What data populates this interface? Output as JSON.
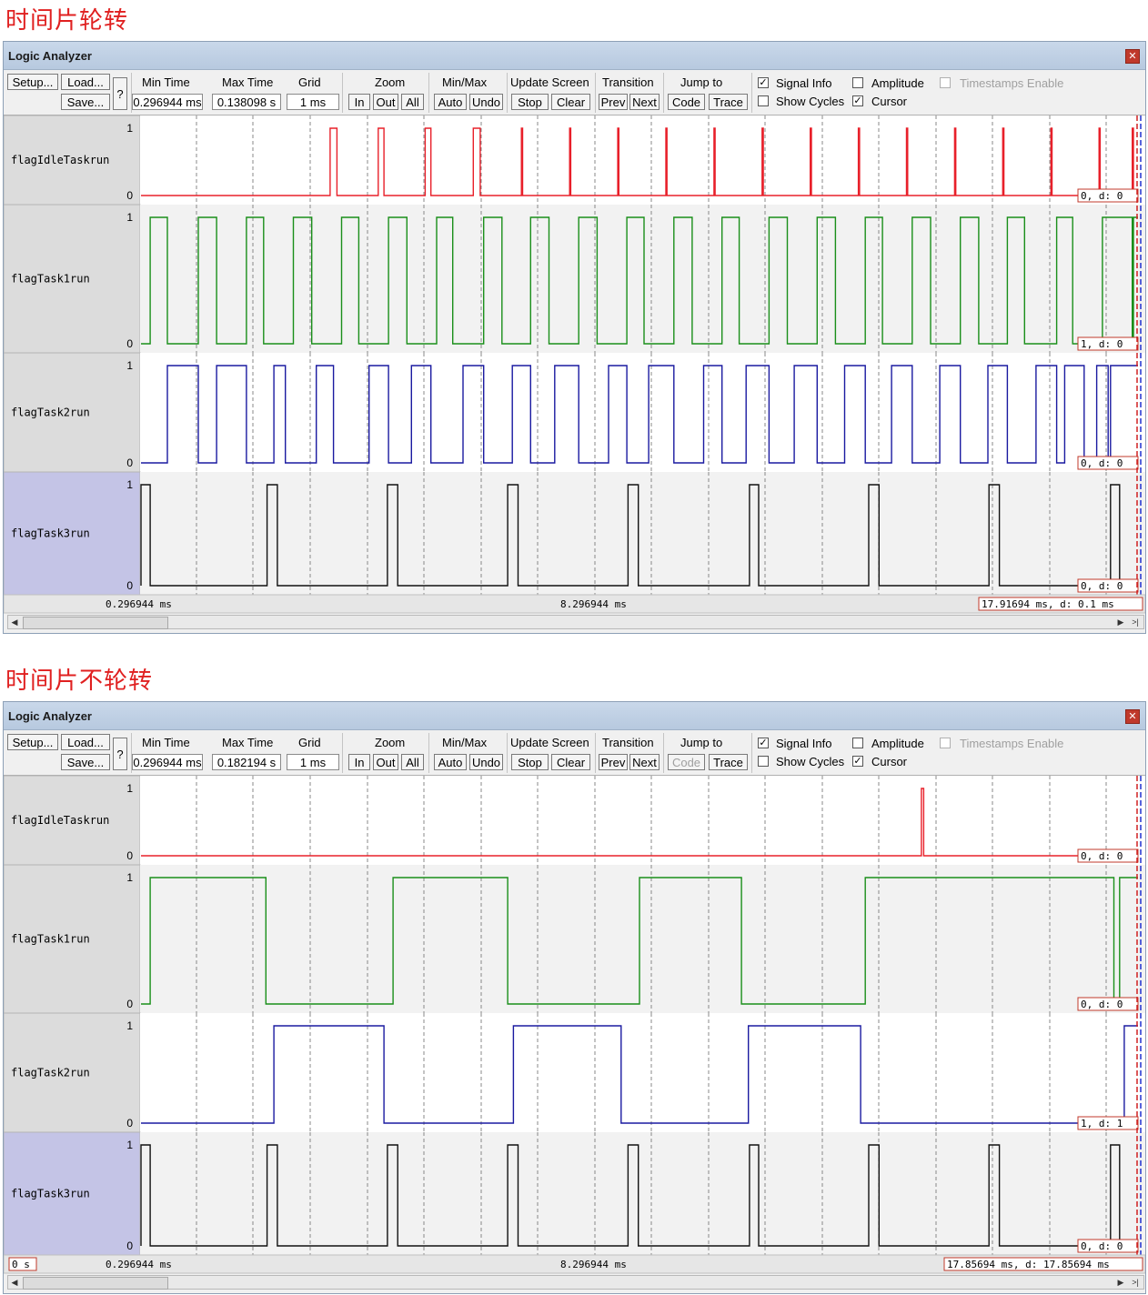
{
  "sections": [
    {
      "heading": "时间片轮转",
      "window_title": "Logic Analyzer",
      "toolbar": {
        "setup": "Setup...",
        "load": "Load...",
        "save": "Save...",
        "help": "?",
        "min_time_label": "Min Time",
        "min_time_value": "0.296944 ms",
        "max_time_label": "Max Time",
        "max_time_value": "0.138098 s",
        "grid_label": "Grid",
        "grid_value": "1 ms",
        "zoom_label": "Zoom",
        "zoom_in": "In",
        "zoom_out": "Out",
        "zoom_all": "All",
        "minmax_label": "Min/Max",
        "auto": "Auto",
        "undo": "Undo",
        "update_label": "Update Screen",
        "stop": "Stop",
        "clear": "Clear",
        "transition_label": "Transition",
        "prev": "Prev",
        "next": "Next",
        "jump_label": "Jump to",
        "code": "Code",
        "trace": "Trace",
        "code_enabled": true,
        "signal_info": "Signal Info",
        "signal_info_checked": true,
        "amplitude": "Amplitude",
        "amplitude_checked": false,
        "timestamps": "Timestamps Enable",
        "timestamps_checked": false,
        "show_cycles": "Show Cycles",
        "show_cycles_checked": false,
        "cursor": "Cursor",
        "cursor_checked": true
      },
      "signals": [
        {
          "name": "flagIdleTaskrun",
          "color": "#e8202a",
          "hi": "1",
          "lo": "0",
          "info": "0,   d: 0",
          "initial": 0,
          "edges": [
            16.5,
            17.1,
            20.7,
            21.2,
            24.8,
            25.3,
            29.0,
            29.6,
            33.2,
            33.3,
            37.4,
            37.5,
            41.6,
            41.7,
            45.8,
            45.9,
            50.0,
            50.1,
            54.2,
            54.3,
            58.4,
            58.5,
            62.6,
            62.7,
            66.8,
            66.9,
            71.0,
            71.1,
            75.2,
            75.3,
            79.4,
            79.5,
            83.6,
            83.7,
            86.5,
            86.6
          ]
        },
        {
          "name": "flagTask1run",
          "color": "#1a8f1a",
          "hi": "1",
          "lo": "0",
          "info": "1,   d: 0",
          "initial": 0,
          "edges": [
            0.8,
            2.3,
            5.0,
            6.6,
            9.2,
            10.7,
            13.3,
            14.9,
            17.5,
            19.0,
            21.6,
            23.2,
            25.8,
            27.2,
            29.9,
            31.5,
            34.0,
            35.6,
            38.2,
            39.8,
            42.4,
            43.9,
            46.5,
            48.1,
            50.7,
            52.2,
            54.8,
            56.4,
            59.0,
            60.6,
            63.2,
            64.7,
            67.3,
            68.9,
            71.5,
            73.1,
            75.6,
            77.1,
            79.9,
            81.3,
            83.9,
            86.5,
            86.6
          ]
        },
        {
          "name": "flagTask2run",
          "color": "#1a1aa0",
          "hi": "1",
          "lo": "0",
          "info": "0,   d: 0",
          "initial": 0,
          "edges": [
            2.3,
            5.0,
            6.6,
            9.2,
            11.6,
            12.6,
            15.3,
            16.8,
            19.9,
            21.6,
            23.6,
            25.3,
            28.1,
            29.9,
            32.4,
            34.0,
            36.1,
            38.2,
            40.8,
            42.4,
            44.3,
            46.5,
            49.1,
            50.7,
            52.8,
            54.8,
            57.0,
            59.0,
            61.4,
            63.2,
            65.5,
            67.3,
            69.7,
            71.5,
            73.9,
            75.6,
            78.1,
            79.9,
            80.6,
            82.3,
            83.4,
            84.4,
            84.6
          ]
        },
        {
          "name": "flagTask3run",
          "color": "#111111",
          "hi": "1",
          "lo": "0",
          "info": "0,   d: 0",
          "initial": 0,
          "edges": [
            0.0,
            0.8,
            11.0,
            11.9,
            21.5,
            22.4,
            32.0,
            32.9,
            42.5,
            43.4,
            53.1,
            53.9,
            63.5,
            64.4,
            74.0,
            74.9,
            84.6,
            85.4
          ]
        }
      ],
      "time_left": "0.296944 ms",
      "time_mid": "8.296944 ms",
      "time_right": "17.91694 ms,   d: 0.1 ms",
      "time_zero": ""
    },
    {
      "heading": "时间片不轮转",
      "window_title": "Logic Analyzer",
      "toolbar": {
        "setup": "Setup...",
        "load": "Load...",
        "save": "Save...",
        "help": "?",
        "min_time_label": "Min Time",
        "min_time_value": "0.296944 ms",
        "max_time_label": "Max Time",
        "max_time_value": "0.182194 s",
        "grid_label": "Grid",
        "grid_value": "1 ms",
        "zoom_label": "Zoom",
        "zoom_in": "In",
        "zoom_out": "Out",
        "zoom_all": "All",
        "minmax_label": "Min/Max",
        "auto": "Auto",
        "undo": "Undo",
        "update_label": "Update Screen",
        "stop": "Stop",
        "clear": "Clear",
        "transition_label": "Transition",
        "prev": "Prev",
        "next": "Next",
        "jump_label": "Jump to",
        "code": "Code",
        "trace": "Trace",
        "code_enabled": false,
        "signal_info": "Signal Info",
        "signal_info_checked": true,
        "amplitude": "Amplitude",
        "amplitude_checked": false,
        "timestamps": "Timestamps Enable",
        "timestamps_checked": false,
        "show_cycles": "Show Cycles",
        "show_cycles_checked": false,
        "cursor": "Cursor",
        "cursor_checked": true
      },
      "signals": [
        {
          "name": "flagIdleTaskrun",
          "color": "#e8202a",
          "hi": "1",
          "lo": "0",
          "info": "0,   d: 0",
          "initial": 0,
          "edges": [
            68.1,
            68.3
          ]
        },
        {
          "name": "flagTask1run",
          "color": "#1a8f1a",
          "hi": "1",
          "lo": "0",
          "info": "0,   d: 0",
          "initial": 0,
          "edges": [
            0.8,
            10.9,
            22.0,
            32.0,
            43.5,
            52.4,
            63.2,
            84.9,
            85.4
          ]
        },
        {
          "name": "flagTask2run",
          "color": "#1a1aa0",
          "hi": "1",
          "lo": "0",
          "info": "1,   d: 1",
          "initial": 0,
          "edges": [
            11.6,
            21.2,
            32.5,
            41.9,
            53.0,
            62.8,
            85.8
          ]
        },
        {
          "name": "flagTask3run",
          "color": "#111111",
          "hi": "1",
          "lo": "0",
          "info": "0,   d: 0",
          "initial": 0,
          "edges": [
            0.0,
            0.8,
            11.0,
            11.9,
            21.5,
            22.4,
            32.0,
            32.9,
            42.5,
            43.4,
            53.1,
            53.9,
            63.5,
            64.4,
            74.0,
            74.9,
            84.6,
            85.4
          ]
        }
      ],
      "time_left": "0.296944 ms",
      "time_mid": "8.296944 ms",
      "time_right": "17.85694 ms,   d: 17.85694 ms",
      "time_zero": "0 s"
    }
  ]
}
